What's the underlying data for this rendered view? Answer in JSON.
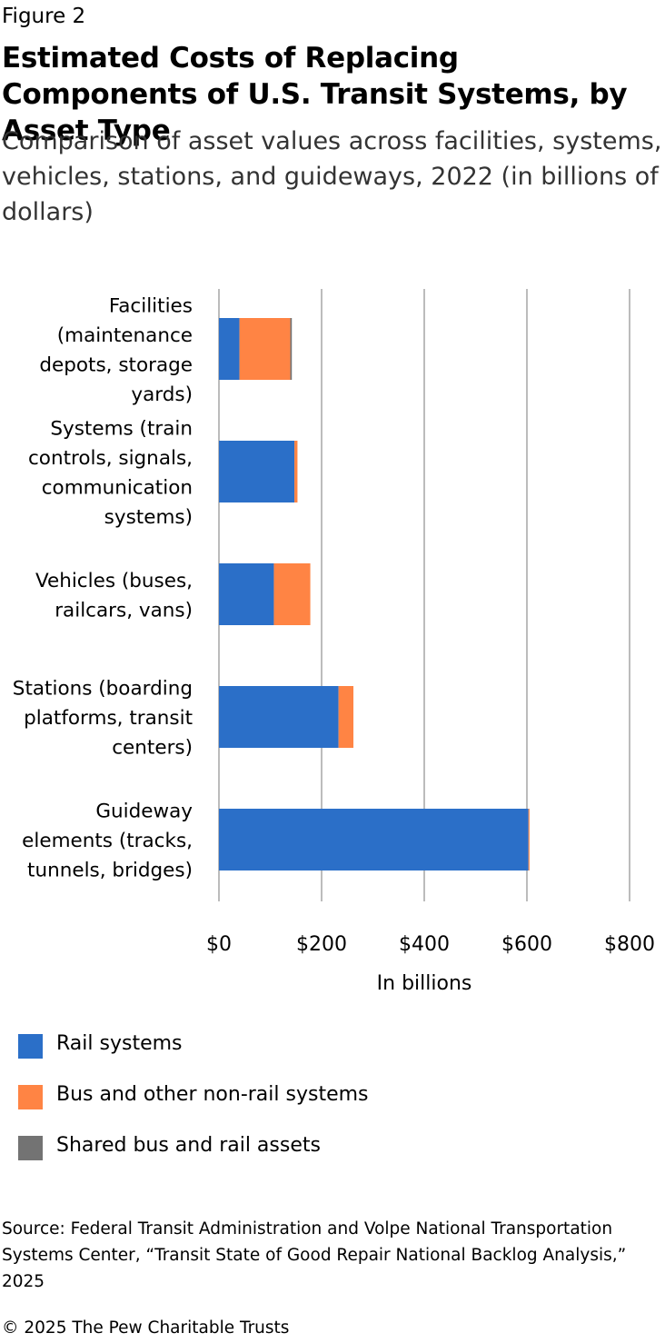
{
  "figure_label": "Figure 2",
  "title": "Estimated Costs of Replacing Components of U.S. Transit Systems, by Asset Type",
  "subtitle": "Comparison of asset values across facilities, systems, vehicles, stations, and guideways, 2022 (in billions of dollars)",
  "chart_data": {
    "type": "bar",
    "orientation": "horizontal",
    "stacked": true,
    "categories": [
      [
        "Facilities",
        "(maintenance",
        "depots, storage",
        "yards)"
      ],
      [
        "Systems (train",
        "controls, signals,",
        "communication",
        "systems)"
      ],
      [
        "Vehicles (buses,",
        "railcars, vans)"
      ],
      [
        "Stations (boarding",
        "platforms, transit",
        "centers)"
      ],
      [
        "Guideway",
        "elements (tracks,",
        "tunnels, bridges)"
      ]
    ],
    "series": [
      {
        "name": "Rail systems",
        "color": "#2b6fc8",
        "values": [
          40,
          147,
          107,
          233,
          603
        ]
      },
      {
        "name": "Bus and other non-rail systems",
        "color": "#ff8444",
        "values": [
          99,
          6,
          71,
          29,
          2
        ]
      },
      {
        "name": "Shared bus and rail assets",
        "color": "#737373",
        "values": [
          3,
          0,
          0,
          0,
          0
        ]
      }
    ],
    "xlim": [
      0,
      800
    ],
    "ticks": [
      0,
      200,
      400,
      600,
      800
    ],
    "tick_labels": [
      "$0",
      "$200",
      "$400",
      "$600",
      "$800"
    ],
    "xlabel": "In billions",
    "grid": "vertical",
    "legend_position": "bottom-left"
  },
  "source": "Source: Federal Transit Administration and Volpe National Transportation Systems Center, “Transit State of Good Repair National Backlog Analysis,” 2025",
  "copyright": "© 2025 The Pew Charitable Trusts"
}
